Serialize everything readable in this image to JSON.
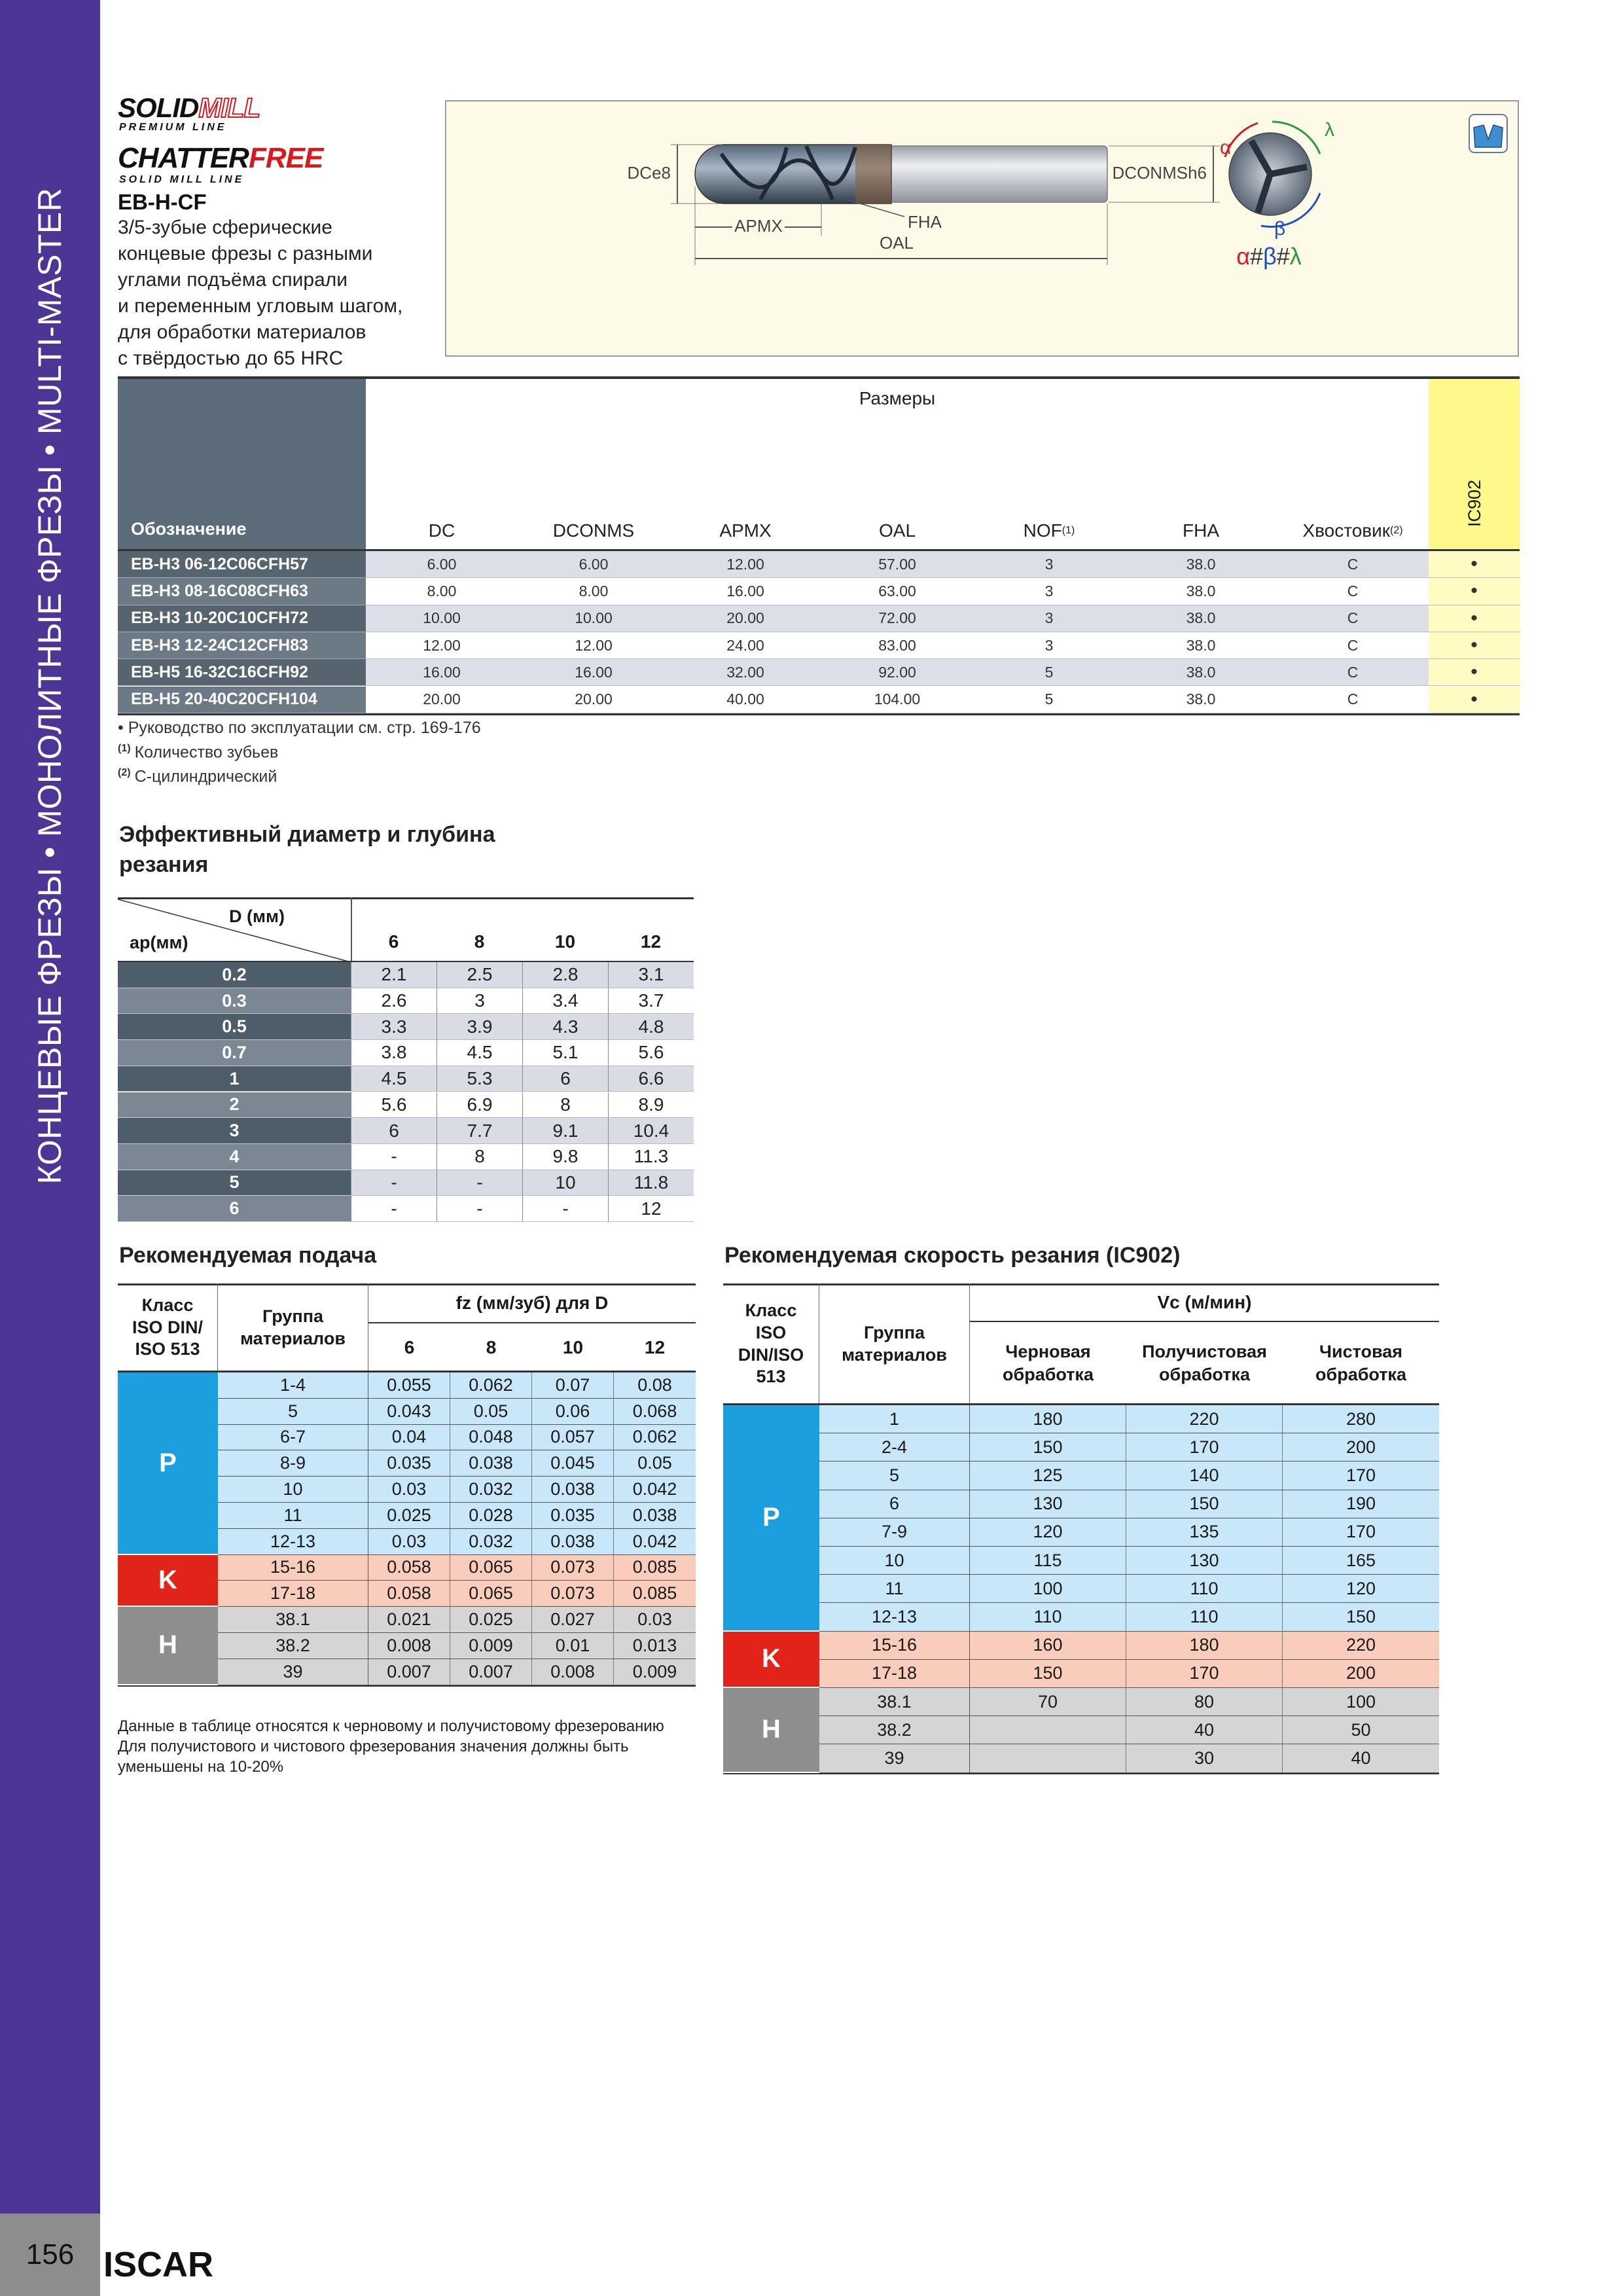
{
  "sidebar": {
    "text": "КОНЦЕВЫЕ ФРЕЗЫ • МОНОЛИТНЫЕ ФРЕЗЫ • MULTI-MASTER"
  },
  "footer": {
    "page_number": "156",
    "brand": "ISCAR"
  },
  "header": {
    "logo1": [
      "SOLID",
      "MILL"
    ],
    "logo1_sub": "PREMIUM LINE",
    "logo2": [
      "CHATTER",
      "FREE"
    ],
    "logo2_sub": "SOLID MILL LINE",
    "code": "EB-H-CF",
    "description": [
      "3/5-зубые сферические",
      "концевые фрезы с разными",
      "углами подъёма спирали",
      "и переменным угловым шагом,",
      "для обработки материалов",
      "с твёрдостью до 65 HRC"
    ]
  },
  "diagram": {
    "dc_label": "DCe8",
    "dconms_label": "DCONMSh6",
    "apmx_label": "APMX",
    "fha_label": "FHA",
    "oal_label": "OAL",
    "alpha": "α",
    "beta": "β",
    "lambda": "λ",
    "formula": [
      "α",
      "#",
      "β",
      "#",
      "λ"
    ]
  },
  "main_table": {
    "first_column": "Обозначение",
    "group_header": "Размеры",
    "columns": [
      {
        "label": "DC"
      },
      {
        "label": "DCONMS"
      },
      {
        "label": "APMX"
      },
      {
        "label": "OAL"
      },
      {
        "label": "NOF",
        "sup": "(1)"
      },
      {
        "label": "FHA"
      },
      {
        "label": "Хвостовик",
        "sup": "(2)"
      },
      {
        "label": "IC902"
      }
    ],
    "rows": [
      {
        "designation": "EB-H3 06-12C06CFH57",
        "values": [
          "6.00",
          "6.00",
          "12.00",
          "57.00",
          "3",
          "38.0",
          "C",
          "•"
        ]
      },
      {
        "designation": "EB-H3 08-16C08CFH63",
        "values": [
          "8.00",
          "8.00",
          "16.00",
          "63.00",
          "3",
          "38.0",
          "C",
          "•"
        ]
      },
      {
        "designation": "EB-H3 10-20C10CFH72",
        "values": [
          "10.00",
          "10.00",
          "20.00",
          "72.00",
          "3",
          "38.0",
          "C",
          "•"
        ]
      },
      {
        "designation": "EB-H3 12-24C12CFH83",
        "values": [
          "12.00",
          "12.00",
          "24.00",
          "83.00",
          "3",
          "38.0",
          "C",
          "•"
        ]
      },
      {
        "designation": "EB-H5 16-32C16CFH92",
        "values": [
          "16.00",
          "16.00",
          "32.00",
          "92.00",
          "5",
          "38.0",
          "C",
          "•"
        ]
      },
      {
        "designation": "EB-H5 20-40C20CFH104",
        "values": [
          "20.00",
          "20.00",
          "40.00",
          "104.00",
          "5",
          "38.0",
          "C",
          "•"
        ]
      }
    ]
  },
  "footnotes": [
    {
      "text": "• Руководство по эксплуатации см. стр. 169-176"
    },
    {
      "sup": "(1)",
      "text": "Количество зубьев"
    },
    {
      "sup": "(2)",
      "text": "С-цилиндрический"
    }
  ],
  "depth_table": {
    "title": [
      "Эффективный диаметр и глубина",
      "резания"
    ],
    "corner_top": "D (мм)",
    "corner_bottom": "ap(мм)",
    "columns": [
      "6",
      "8",
      "10",
      "12"
    ],
    "rows": [
      {
        "ap": "0.2",
        "values": [
          "2.1",
          "2.5",
          "2.8",
          "3.1"
        ]
      },
      {
        "ap": "0.3",
        "values": [
          "2.6",
          "3",
          "3.4",
          "3.7"
        ]
      },
      {
        "ap": "0.5",
        "values": [
          "3.3",
          "3.9",
          "4.3",
          "4.8"
        ]
      },
      {
        "ap": "0.7",
        "values": [
          "3.8",
          "4.5",
          "5.1",
          "5.6"
        ]
      },
      {
        "ap": "1",
        "values": [
          "4.5",
          "5.3",
          "6",
          "6.6"
        ]
      },
      {
        "ap": "2",
        "values": [
          "5.6",
          "6.9",
          "8",
          "8.9"
        ]
      },
      {
        "ap": "3",
        "values": [
          "6",
          "7.7",
          "9.1",
          "10.4"
        ]
      },
      {
        "ap": "4",
        "values": [
          "-",
          "8",
          "9.8",
          "11.3"
        ]
      },
      {
        "ap": "5",
        "values": [
          "-",
          "-",
          "10",
          "11.8"
        ]
      },
      {
        "ap": "6",
        "values": [
          "-",
          "-",
          "-",
          "12"
        ]
      }
    ]
  },
  "feed_table": {
    "title": "Рекомендуемая подача",
    "class_header": [
      "Класс",
      "ISO DIN/",
      "ISO 513"
    ],
    "group_header": [
      "Группа",
      "материалов"
    ],
    "value_header": "fz (мм/зуб) для D",
    "columns": [
      "6",
      "8",
      "10",
      "12"
    ],
    "groups": [
      {
        "class": "P",
        "rows": [
          {
            "group": "1-4",
            "values": [
              "0.055",
              "0.062",
              "0.07",
              "0.08"
            ]
          },
          {
            "group": "5",
            "values": [
              "0.043",
              "0.05",
              "0.06",
              "0.068"
            ]
          },
          {
            "group": "6-7",
            "values": [
              "0.04",
              "0.048",
              "0.057",
              "0.062"
            ]
          },
          {
            "group": "8-9",
            "values": [
              "0.035",
              "0.038",
              "0.045",
              "0.05"
            ]
          },
          {
            "group": "10",
            "values": [
              "0.03",
              "0.032",
              "0.038",
              "0.042"
            ]
          },
          {
            "group": "11",
            "values": [
              "0.025",
              "0.028",
              "0.035",
              "0.038"
            ]
          },
          {
            "group": "12-13",
            "values": [
              "0.03",
              "0.032",
              "0.038",
              "0.042"
            ]
          }
        ]
      },
      {
        "class": "K",
        "rows": [
          {
            "group": "15-16",
            "values": [
              "0.058",
              "0.065",
              "0.073",
              "0.085"
            ]
          },
          {
            "group": "17-18",
            "values": [
              "0.058",
              "0.065",
              "0.073",
              "0.085"
            ]
          }
        ]
      },
      {
        "class": "H",
        "rows": [
          {
            "group": "38.1",
            "values": [
              "0.021",
              "0.025",
              "0.027",
              "0.03"
            ]
          },
          {
            "group": "38.2",
            "values": [
              "0.008",
              "0.009",
              "0.01",
              "0.013"
            ]
          },
          {
            "group": "39",
            "values": [
              "0.007",
              "0.007",
              "0.008",
              "0.009"
            ]
          }
        ]
      }
    ],
    "note": [
      "Данные в таблице относятся к черновому и получистовому фрезерованию",
      "Для получистового и чистового фрезерования значения должны быть",
      "уменьшены на 10-20%"
    ]
  },
  "speed_table": {
    "title": "Рекомендуемая скорость резания (IC902)",
    "class_header": [
      "Класс",
      "ISO",
      "DIN/ISO",
      "513"
    ],
    "group_header": [
      "Группа",
      "материалов"
    ],
    "value_header": "Vc (м/мин)",
    "columns": [
      [
        "Черновая",
        "обработка"
      ],
      [
        "Получистовая",
        "обработка"
      ],
      [
        "Чистовая",
        "обработка"
      ]
    ],
    "groups": [
      {
        "class": "P",
        "rows": [
          {
            "group": "1",
            "values": [
              "180",
              "220",
              "280"
            ]
          },
          {
            "group": "2-4",
            "values": [
              "150",
              "170",
              "200"
            ]
          },
          {
            "group": "5",
            "values": [
              "125",
              "140",
              "170"
            ]
          },
          {
            "group": "6",
            "values": [
              "130",
              "150",
              "190"
            ]
          },
          {
            "group": "7-9",
            "values": [
              "120",
              "135",
              "170"
            ]
          },
          {
            "group": "10",
            "values": [
              "115",
              "130",
              "165"
            ]
          },
          {
            "group": "11",
            "values": [
              "100",
              "110",
              "120"
            ]
          },
          {
            "group": "12-13",
            "values": [
              "110",
              "110",
              "150"
            ]
          }
        ]
      },
      {
        "class": "K",
        "rows": [
          {
            "group": "15-16",
            "values": [
              "160",
              "180",
              "220"
            ]
          },
          {
            "group": "17-18",
            "values": [
              "150",
              "170",
              "200"
            ]
          }
        ]
      },
      {
        "class": "H",
        "rows": [
          {
            "group": "38.1",
            "values": [
              "70",
              "80",
              "100"
            ]
          },
          {
            "group": "38.2",
            "values": [
              null,
              "40",
              "50"
            ]
          },
          {
            "group": "39",
            "values": [
              null,
              "30",
              "40"
            ]
          }
        ]
      }
    ]
  }
}
